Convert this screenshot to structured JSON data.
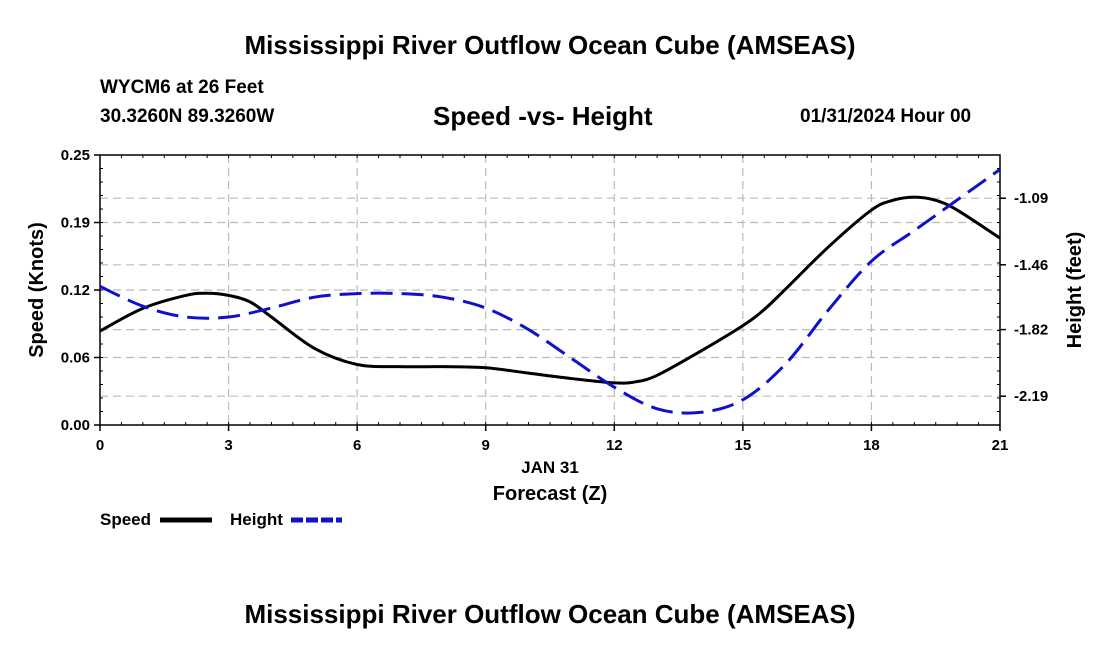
{
  "header": {
    "title": "Mississippi River Outflow Ocean Cube (AMSEAS)",
    "station": "WYCM6 at 26 Feet",
    "coordinates": "30.3260N  89.3260W",
    "subtitle": "Speed -vs- Height",
    "timestamp": "01/31/2024 Hour 00"
  },
  "footer": {
    "title": "Mississippi River Outflow Ocean Cube (AMSEAS)"
  },
  "colors": {
    "speed": "#000000",
    "height": "#1010cc",
    "grid": "#bbbbbb"
  },
  "chart_data": {
    "type": "line",
    "title": "Speed -vs- Height",
    "xlabel": "Forecast (Z)",
    "xlabel_date": "JAN 31",
    "ylabel": "Speed (Knots)",
    "y2label": "Height (feet)",
    "xlim": [
      0,
      21
    ],
    "ylim": [
      0,
      0.25
    ],
    "y2lim": [
      -2.35,
      -0.85
    ],
    "x_ticks": [
      0,
      3,
      6,
      9,
      12,
      15,
      18,
      21
    ],
    "x_tick_labels": [
      "0",
      "3",
      "6",
      "9",
      "12",
      "15",
      "18",
      "21"
    ],
    "y_ticks": [
      0.0,
      0.0625,
      0.125,
      0.1875,
      0.25
    ],
    "y_tick_labels": [
      "0.00",
      "0.06",
      "0.12",
      "0.19",
      "0.25"
    ],
    "y2_ticks": [
      -2.19,
      -1.82,
      -1.46,
      -1.09
    ],
    "y2_tick_labels": [
      "-2.19",
      "-1.82",
      "-1.46",
      "-1.09"
    ],
    "grid": true,
    "legend": [
      {
        "name": "Speed",
        "style": "solid"
      },
      {
        "name": "Height",
        "style": "dashed"
      }
    ],
    "series": [
      {
        "name": "Speed",
        "axis": "left",
        "style": "solid",
        "x": [
          0,
          1,
          2,
          2.5,
          3,
          3.5,
          4,
          5,
          6,
          7,
          8,
          9,
          10,
          11,
          12,
          12.5,
          13,
          14,
          15,
          15.5,
          16,
          17,
          18,
          18.5,
          19,
          19.5,
          20,
          21
        ],
        "values": [
          0.087,
          0.108,
          0.12,
          0.122,
          0.12,
          0.114,
          0.1,
          0.071,
          0.056,
          0.054,
          0.054,
          0.053,
          0.048,
          0.043,
          0.039,
          0.04,
          0.046,
          0.068,
          0.092,
          0.107,
          0.126,
          0.165,
          0.199,
          0.208,
          0.211,
          0.208,
          0.199,
          0.173
        ]
      },
      {
        "name": "Height",
        "axis": "right",
        "style": "dashed",
        "x": [
          0,
          1,
          2,
          3,
          4,
          5,
          6,
          7,
          8,
          9,
          10,
          11,
          12,
          13,
          14,
          15,
          16,
          17,
          18,
          19,
          20,
          21
        ],
        "values": [
          -1.58,
          -1.69,
          -1.75,
          -1.75,
          -1.7,
          -1.64,
          -1.62,
          -1.62,
          -1.64,
          -1.7,
          -1.82,
          -1.98,
          -2.14,
          -2.26,
          -2.28,
          -2.21,
          -2.01,
          -1.71,
          -1.44,
          -1.27,
          -1.1,
          -0.93
        ]
      }
    ]
  }
}
